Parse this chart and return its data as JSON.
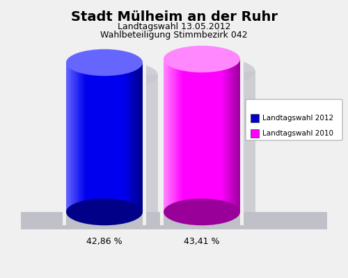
{
  "title": "Stadt Mülheim an der Ruhr",
  "subtitle1": "Landtagswahl 13.05.2012",
  "subtitle2": "Wahlbeteiligung Stimmbezirk 042",
  "values": [
    42.86,
    43.41
  ],
  "labels": [
    "42,86 %",
    "43,41 %"
  ],
  "bar_colors_main": [
    "#0000ee",
    "#ff00ff"
  ],
  "bar_colors_left": [
    "#6666ff",
    "#ff88ff"
  ],
  "bar_colors_right": [
    "#000088",
    "#990099"
  ],
  "background_color": "#f0f0f0",
  "shadow_color": "#c8c8d0",
  "platform_color": "#c0c0c8",
  "legend_labels": [
    "Landtagswahl 2012",
    "Landtagswahl 2010"
  ],
  "legend_colors": [
    "#0000cc",
    "#ff00ff"
  ],
  "title_fontsize": 14,
  "subtitle_fontsize": 9,
  "label_fontsize": 9
}
